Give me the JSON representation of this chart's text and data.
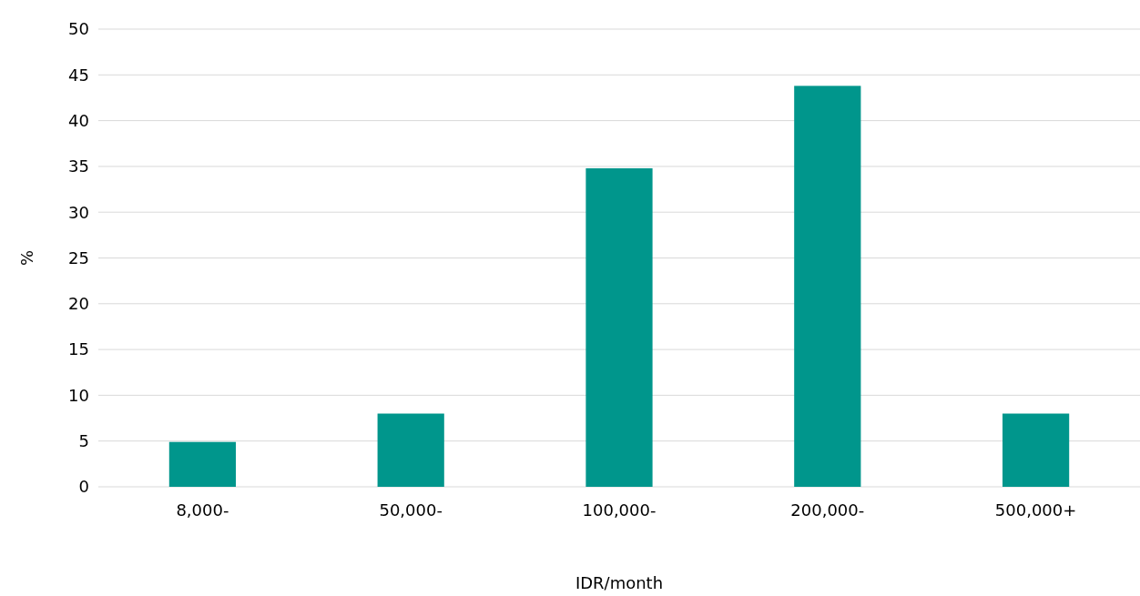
{
  "chart_data": {
    "type": "bar",
    "xlabel": "IDR/month",
    "ylabel": "%",
    "categories": [
      "8,000-",
      "50,000-",
      "100,000-",
      "200,000-",
      "500,000+"
    ],
    "values": [
      4.9,
      8,
      34.8,
      43.8,
      8
    ],
    "color": "#00968c",
    "ylim": [
      0,
      50
    ],
    "yticks": [
      0,
      5,
      10,
      15,
      20,
      25,
      30,
      35,
      40,
      45,
      50
    ],
    "grid": "y"
  }
}
